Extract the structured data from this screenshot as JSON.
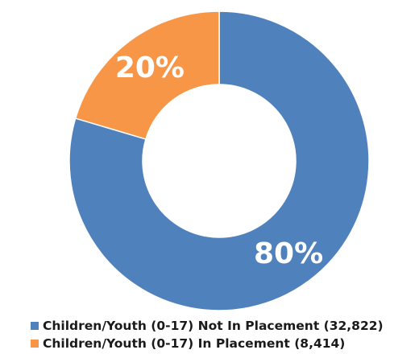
{
  "chart_data": {
    "type": "pie",
    "donut": true,
    "legend_position": "bottom",
    "slices": [
      {
        "name": "Children/Youth (0-17) Not In Placement (32,822)",
        "value": 32822,
        "label": "80%",
        "color": "#4F81BD"
      },
      {
        "name": "Children/Youth (0-17) In Placement (8,414)",
        "value": 8414,
        "label": "20%",
        "color": "#F79646"
      }
    ]
  }
}
